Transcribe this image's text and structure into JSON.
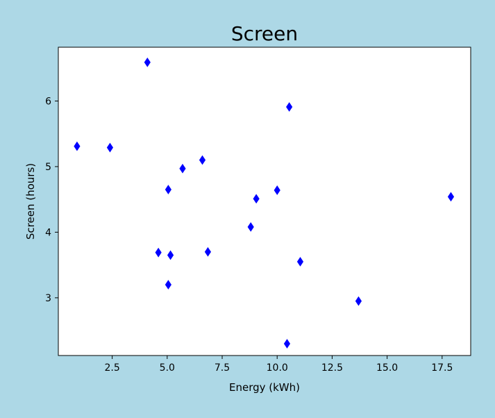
{
  "chart_data": {
    "type": "scatter",
    "title": "Screen",
    "xlabel": "Energy (kWh)",
    "ylabel": "Screen (hours)",
    "xlim": [
      0.05,
      18.8
    ],
    "ylim": [
      2.12,
      6.82
    ],
    "xticks": [
      2.5,
      5.0,
      7.5,
      10.0,
      12.5,
      15.0,
      17.5
    ],
    "xtick_labels": [
      "2.5",
      "5.0",
      "7.5",
      "10.0",
      "12.5",
      "15.0",
      "17.5"
    ],
    "yticks": [
      3,
      4,
      5,
      6
    ],
    "ytick_labels": [
      "3",
      "4",
      "5",
      "6"
    ],
    "grid": false,
    "marker": "thin_diamond",
    "marker_color": "#0000ff",
    "background_color": "#add8e6",
    "plot_background": "#ffffff",
    "series": [
      {
        "points": [
          {
            "x": 0.9,
            "y": 5.31
          },
          {
            "x": 2.4,
            "y": 5.29
          },
          {
            "x": 4.1,
            "y": 6.59
          },
          {
            "x": 4.6,
            "y": 3.69
          },
          {
            "x": 5.05,
            "y": 4.65
          },
          {
            "x": 5.15,
            "y": 3.65
          },
          {
            "x": 5.05,
            "y": 3.2
          },
          {
            "x": 5.7,
            "y": 4.97
          },
          {
            "x": 6.6,
            "y": 5.1
          },
          {
            "x": 6.85,
            "y": 3.7
          },
          {
            "x": 8.8,
            "y": 4.08
          },
          {
            "x": 9.05,
            "y": 4.51
          },
          {
            "x": 10.0,
            "y": 4.64
          },
          {
            "x": 10.55,
            "y": 5.91
          },
          {
            "x": 11.05,
            "y": 3.55
          },
          {
            "x": 10.45,
            "y": 2.3
          },
          {
            "x": 13.7,
            "y": 2.95
          },
          {
            "x": 17.9,
            "y": 4.54
          }
        ]
      }
    ]
  }
}
